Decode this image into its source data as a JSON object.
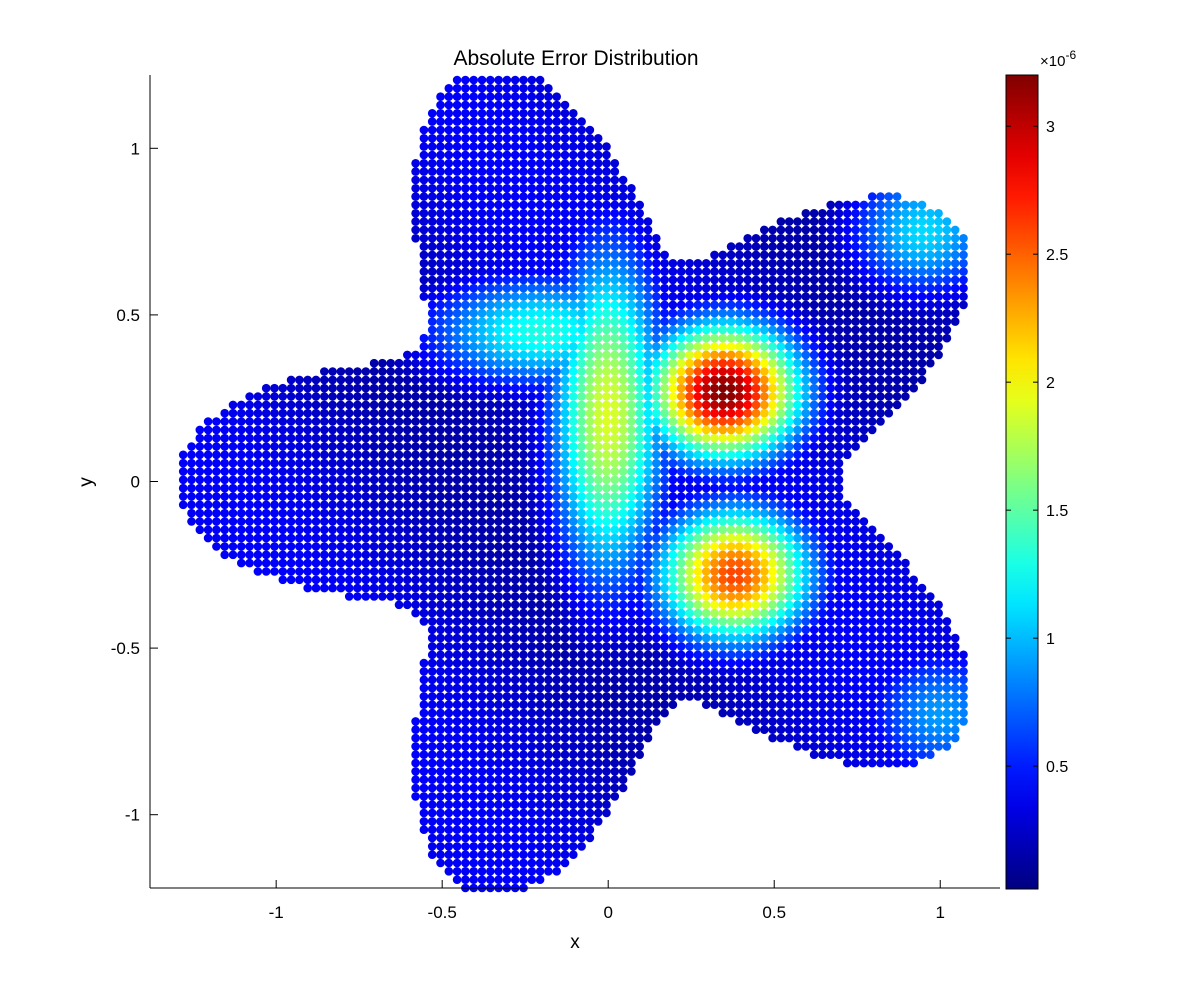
{
  "chart_data": {
    "type": "scatter",
    "title": "Absolute Error Distribution",
    "xlabel": "x",
    "ylabel": "y",
    "xlim": [
      -1.38,
      1.18
    ],
    "ylim": [
      -1.22,
      1.22
    ],
    "xticks": [
      -1,
      -0.5,
      0,
      0.5,
      1
    ],
    "xtick_labels": [
      "-1",
      "-0.5",
      "0",
      "0.5",
      "1"
    ],
    "yticks": [
      -1,
      -0.5,
      0,
      0.5,
      1
    ],
    "ytick_labels": [
      "-1",
      "-0.5",
      "0",
      "0.5",
      "1"
    ],
    "grid": false,
    "legend": "none",
    "domain_shape": {
      "description_of_boundary": "five-petal star domain, r(theta) = 1 + 0.3*cos(5*theta), rotated so a lobe points to negative x",
      "r_mean": 1.0,
      "r_amplitude": 0.3,
      "lobes": 5,
      "lobe_angle_deg": 180
    },
    "grid_spacing": 0.025,
    "colorbar": {
      "colormap": "jet",
      "exponent_label": "×10",
      "exponent_value": "-6",
      "clim": [
        0.02,
        3.2
      ],
      "ticks": [
        0.5,
        1,
        1.5,
        2,
        2.5,
        3
      ],
      "tick_labels": [
        "0.5",
        "1",
        "1.5",
        "2",
        "2.5",
        "3"
      ]
    },
    "error_features": [
      {
        "name": "peak",
        "center": [
          0.35,
          0.27
        ],
        "value": 3.2
      },
      {
        "name": "lower-right-arm",
        "center": [
          0.38,
          -0.28
        ],
        "value": 2.6
      },
      {
        "name": "central-vertical-band",
        "center": [
          0.0,
          0.2
        ],
        "value": 1.9
      },
      {
        "name": "upper-left-band",
        "center": [
          -0.2,
          0.45
        ],
        "value": 1.3
      },
      {
        "name": "right-lobe-tip",
        "center": [
          0.95,
          0.75
        ],
        "value": 1.1
      },
      {
        "name": "lower-right-lobe-tip",
        "center": [
          1.0,
          -0.7
        ],
        "value": 0.9
      }
    ]
  },
  "colors": {
    "axes": "#000000",
    "background": "#ffffff"
  }
}
